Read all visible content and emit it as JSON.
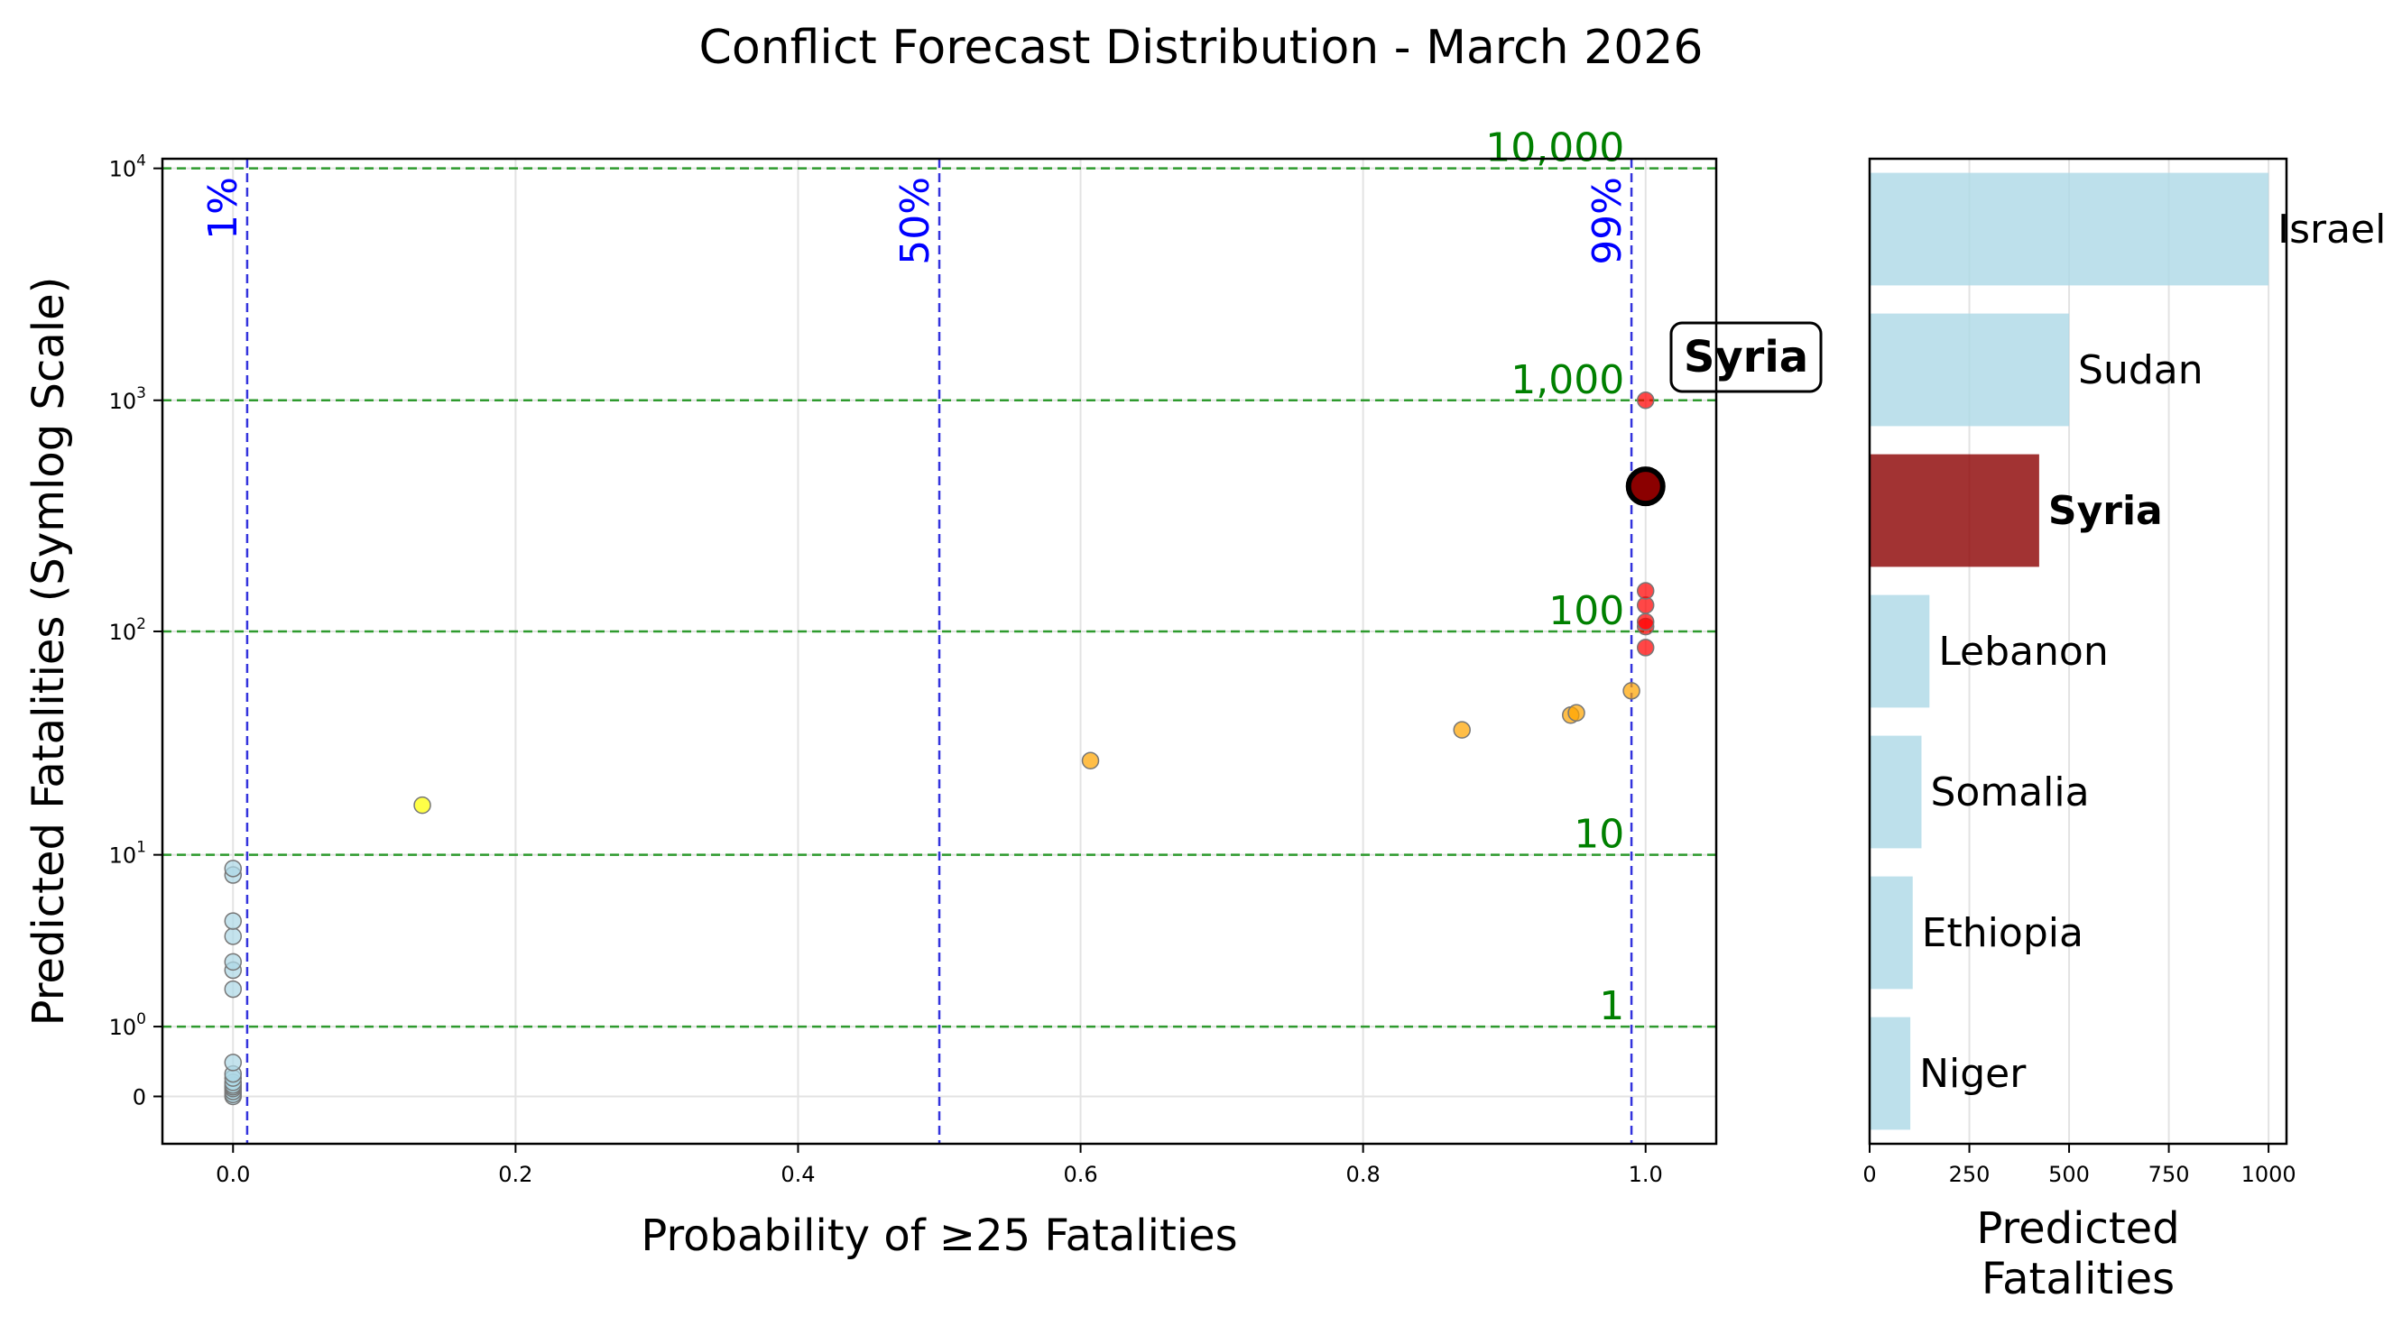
{
  "title": "Conflict Forecast Distribution - March 2026",
  "chart_data": [
    {
      "type": "scatter",
      "xlabel": "Probability of ≥25 Fatalities",
      "ylabel": "Predicted Fatalities (Symlog Scale)",
      "y_scale": "symlog",
      "xlim": [
        -0.05,
        1.05
      ],
      "ylim": [
        -0.6,
        11000
      ],
      "x_ticks": [
        0.0,
        0.2,
        0.4,
        0.6,
        0.8,
        1.0
      ],
      "x_tick_labels": [
        "0.0",
        "0.2",
        "0.4",
        "0.6",
        "0.8",
        "1.0"
      ],
      "y_ticks": [
        0,
        1,
        10,
        100,
        1000,
        10000
      ],
      "y_tick_labels": [
        {
          "base": "0",
          "exp": ""
        },
        {
          "base": "10",
          "exp": "0"
        },
        {
          "base": "10",
          "exp": "1"
        },
        {
          "base": "10",
          "exp": "2"
        },
        {
          "base": "10",
          "exp": "3"
        },
        {
          "base": "10",
          "exp": "4"
        }
      ],
      "grid": true,
      "vlines": [
        {
          "x": 0.01,
          "label": "1%"
        },
        {
          "x": 0.5,
          "label": "50%"
        },
        {
          "x": 0.99,
          "label": "99%"
        }
      ],
      "hlines": [
        {
          "y": 1,
          "label": "1"
        },
        {
          "y": 10,
          "label": "10"
        },
        {
          "y": 100,
          "label": "100"
        },
        {
          "y": 1000,
          "label": "1,000"
        },
        {
          "y": 10000,
          "label": "10,000"
        }
      ],
      "points": [
        {
          "x": 0.0,
          "y": 0.0,
          "color": "#add8e6"
        },
        {
          "x": 0.0,
          "y": 0.02,
          "color": "#add8e6"
        },
        {
          "x": 0.0,
          "y": 0.05,
          "color": "#add8e6"
        },
        {
          "x": 0.0,
          "y": 0.08,
          "color": "#add8e6"
        },
        {
          "x": 0.0,
          "y": 0.1,
          "color": "#add8e6"
        },
        {
          "x": 0.0,
          "y": 0.12,
          "color": "#add8e6"
        },
        {
          "x": 0.0,
          "y": 0.15,
          "color": "#add8e6"
        },
        {
          "x": 0.0,
          "y": 0.2,
          "color": "#add8e6"
        },
        {
          "x": 0.0,
          "y": 0.25,
          "color": "#add8e6"
        },
        {
          "x": 0.0,
          "y": 0.4,
          "color": "#add8e6"
        },
        {
          "x": 0.0,
          "y": 1.9,
          "color": "#add8e6"
        },
        {
          "x": 0.0,
          "y": 2.5,
          "color": "#add8e6"
        },
        {
          "x": 0.0,
          "y": 2.8,
          "color": "#add8e6"
        },
        {
          "x": 0.0,
          "y": 3.9,
          "color": "#add8e6"
        },
        {
          "x": 0.0,
          "y": 4.7,
          "color": "#add8e6"
        },
        {
          "x": 0.0,
          "y": 8.0,
          "color": "#add8e6"
        },
        {
          "x": 0.0,
          "y": 8.6,
          "color": "#add8e6"
        },
        {
          "x": 0.134,
          "y": 17,
          "color": "#ffff00"
        },
        {
          "x": 0.607,
          "y": 27,
          "color": "#ffa500"
        },
        {
          "x": 0.87,
          "y": 37,
          "color": "#ffa500"
        },
        {
          "x": 0.947,
          "y": 43,
          "color": "#ffa500"
        },
        {
          "x": 0.951,
          "y": 44,
          "color": "#ffa500"
        },
        {
          "x": 0.99,
          "y": 55,
          "color": "#ffa500"
        },
        {
          "x": 1.0,
          "y": 85,
          "color": "#ff0000"
        },
        {
          "x": 1.0,
          "y": 105,
          "color": "#ff0000"
        },
        {
          "x": 1.0,
          "y": 110,
          "color": "#ff0000"
        },
        {
          "x": 1.0,
          "y": 130,
          "color": "#ff0000"
        },
        {
          "x": 1.0,
          "y": 150,
          "color": "#ff0000"
        },
        {
          "x": 1.0,
          "y": 1000,
          "color": "#ff0000"
        }
      ],
      "highlight": {
        "x": 1.0,
        "y": 425,
        "label": "Syria",
        "color": "#8b0000"
      }
    },
    {
      "type": "bar",
      "orientation": "horizontal",
      "xlabel": "Predicted\nFatalities",
      "xlim": [
        0,
        1045
      ],
      "x_ticks": [
        0,
        250,
        500,
        750,
        1000
      ],
      "x_tick_labels": [
        "0",
        "250",
        "500",
        "750",
        "1000"
      ],
      "grid": true,
      "bars": [
        {
          "label": "Israel",
          "value": 1000,
          "color": "#add8e6",
          "bold": false
        },
        {
          "label": "Sudan",
          "value": 500,
          "color": "#add8e6",
          "bold": false
        },
        {
          "label": "Syria",
          "value": 425,
          "color": "#8b0000",
          "bold": true
        },
        {
          "label": "Lebanon",
          "value": 150,
          "color": "#add8e6",
          "bold": false
        },
        {
          "label": "Somalia",
          "value": 130,
          "color": "#add8e6",
          "bold": false
        },
        {
          "label": "Ethiopia",
          "value": 108,
          "color": "#add8e6",
          "bold": false
        },
        {
          "label": "Niger",
          "value": 102,
          "color": "#add8e6",
          "bold": false
        }
      ]
    }
  ]
}
